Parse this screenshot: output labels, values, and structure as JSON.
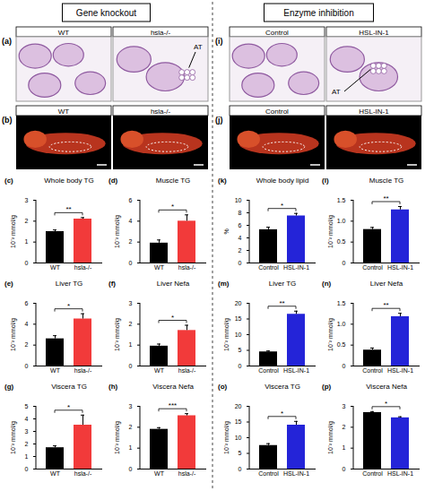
{
  "headers": [
    "Gene knockout",
    "Enzyme inhibition"
  ],
  "images": [
    {
      "panel": "(a)",
      "type": "micrograph",
      "labels": [
        "WT",
        "hsla-/-"
      ],
      "annotation": "AT"
    },
    {
      "panel": "(b)",
      "type": "fluorescence",
      "labels": [
        "WT",
        "hsla-/-"
      ]
    },
    {
      "panel": "(i)",
      "type": "micrograph",
      "labels": [
        "Control",
        "HSL-IN-1"
      ],
      "annotation": "AT"
    },
    {
      "panel": "(j)",
      "type": "fluorescence",
      "labels": [
        "Control",
        "HSL-IN-1"
      ]
    }
  ],
  "chart_data": [
    {
      "type": "bar",
      "panel": "(c)",
      "title": "Whole body TG",
      "y_label": "10⁻² mmol/g",
      "categories": [
        "WT",
        "hsla-/-"
      ],
      "values": [
        1.5,
        2.1
      ],
      "errors": [
        0.08,
        0.07
      ],
      "colors": [
        "#000000",
        "#f23a3a"
      ],
      "ylim": [
        0,
        3
      ],
      "yticks": [
        0,
        1,
        2,
        3
      ],
      "annotation": "**"
    },
    {
      "type": "bar",
      "panel": "(d)",
      "title": "Muscle TG",
      "y_label": "10⁻² mmol/g",
      "categories": [
        "WT",
        "hsla-/-"
      ],
      "values": [
        1.9,
        4.0
      ],
      "errors": [
        0.3,
        0.6
      ],
      "colors": [
        "#000000",
        "#f23a3a"
      ],
      "ylim": [
        0,
        6
      ],
      "yticks": [
        0,
        2,
        4,
        6
      ],
      "annotation": "*"
    },
    {
      "type": "bar",
      "panel": "(e)",
      "title": "Liver TG",
      "y_label": "10⁻² mmol/g",
      "categories": [
        "WT",
        "hsla-/-"
      ],
      "values": [
        2.6,
        4.5
      ],
      "errors": [
        0.3,
        0.5
      ],
      "colors": [
        "#000000",
        "#f23a3a"
      ],
      "ylim": [
        0,
        6
      ],
      "yticks": [
        0,
        2,
        4,
        6
      ],
      "annotation": "*"
    },
    {
      "type": "bar",
      "panel": "(f)",
      "title": "Liver Nefa",
      "y_label": "10⁻² mmol/g",
      "categories": [
        "WT",
        "hsla-/-"
      ],
      "values": [
        0.95,
        1.7
      ],
      "errors": [
        0.1,
        0.25
      ],
      "colors": [
        "#000000",
        "#f23a3a"
      ],
      "ylim": [
        0,
        3
      ],
      "yticks": [
        0,
        1,
        2,
        3
      ],
      "annotation": "*"
    },
    {
      "type": "bar",
      "panel": "(g)",
      "title": "Viscera TG",
      "y_label": "10⁻² mmol/g",
      "categories": [
        "WT",
        "hsla-/-"
      ],
      "values": [
        1.7,
        3.5
      ],
      "errors": [
        0.15,
        0.8
      ],
      "colors": [
        "#000000",
        "#f23a3a"
      ],
      "ylim": [
        0,
        5
      ],
      "yticks": [
        0,
        1,
        2,
        3,
        4,
        5
      ],
      "annotation": "*"
    },
    {
      "type": "bar",
      "panel": "(h)",
      "title": "Viscera Nefa",
      "y_label": "10⁻² mmol/g",
      "categories": [
        "WT",
        "hsla-/-"
      ],
      "values": [
        1.9,
        2.55
      ],
      "errors": [
        0.08,
        0.1
      ],
      "colors": [
        "#000000",
        "#f23a3a"
      ],
      "ylim": [
        0,
        3
      ],
      "yticks": [
        0,
        1,
        2,
        3
      ],
      "annotation": "***"
    },
    {
      "type": "bar",
      "panel": "(k)",
      "title": "Whole body lipid",
      "y_label": "%",
      "categories": [
        "Control",
        "HSL-IN-1"
      ],
      "values": [
        5.3,
        7.5
      ],
      "errors": [
        0.4,
        0.4
      ],
      "colors": [
        "#000000",
        "#2424d8"
      ],
      "ylim": [
        0,
        10
      ],
      "yticks": [
        0,
        2,
        4,
        6,
        8,
        10
      ],
      "annotation": "*"
    },
    {
      "type": "bar",
      "panel": "(l)",
      "title": "Muscle TG",
      "y_label": "10⁻² mmol/g",
      "categories": [
        "Control",
        "HSL-IN-1"
      ],
      "values": [
        0.8,
        1.27
      ],
      "errors": [
        0.05,
        0.08
      ],
      "colors": [
        "#000000",
        "#2424d8"
      ],
      "ylim": [
        0,
        1.5
      ],
      "yticks": [
        0,
        0.5,
        {
          "value": 1,
          "label": "1.0"
        },
        1.5
      ],
      "annotation": "**"
    },
    {
      "type": "bar",
      "panel": "(m)",
      "title": "Liver TG",
      "y_label": "10⁻² mmol/g",
      "categories": [
        "Control",
        "HSL-IN-1"
      ],
      "values": [
        4.5,
        16.5
      ],
      "errors": [
        0.3,
        1.0
      ],
      "colors": [
        "#000000",
        "#2424d8"
      ],
      "ylim": [
        0,
        20
      ],
      "yticks": [
        0,
        5,
        10,
        15,
        20
      ],
      "annotation": "**"
    },
    {
      "type": "bar",
      "panel": "(n)",
      "title": "Liver Nefa",
      "y_label": "10⁻² mmol/g",
      "categories": [
        "Control",
        "HSL-IN-1"
      ],
      "values": [
        0.38,
        1.18
      ],
      "errors": [
        0.05,
        0.08
      ],
      "colors": [
        "#000000",
        "#2424d8"
      ],
      "ylim": [
        0,
        1.5
      ],
      "yticks": [
        0,
        0.5,
        {
          "value": 1,
          "label": "1.0"
        },
        1.5
      ],
      "annotation": "**"
    },
    {
      "type": "bar",
      "panel": "(o)",
      "title": "Viscera TG",
      "y_label": "10⁻² mmol/g",
      "categories": [
        "Control",
        "HSL-IN-1"
      ],
      "values": [
        7.5,
        14
      ],
      "errors": [
        0.6,
        1.2
      ],
      "colors": [
        "#000000",
        "#2424d8"
      ],
      "ylim": [
        0,
        20
      ],
      "yticks": [
        0,
        5,
        10,
        15,
        20
      ],
      "annotation": "*"
    },
    {
      "type": "bar",
      "panel": "(p)",
      "title": "Viscera Nefa",
      "y_label": "10⁻² mmol/g",
      "categories": [
        "Control",
        "HSL-IN-1"
      ],
      "values": [
        2.7,
        2.45
      ],
      "errors": [
        0.05,
        0.05
      ],
      "colors": [
        "#000000",
        "#2424d8"
      ],
      "ylim": [
        0,
        3
      ],
      "yticks": [
        0,
        1,
        2,
        3
      ],
      "annotation": "*"
    }
  ]
}
